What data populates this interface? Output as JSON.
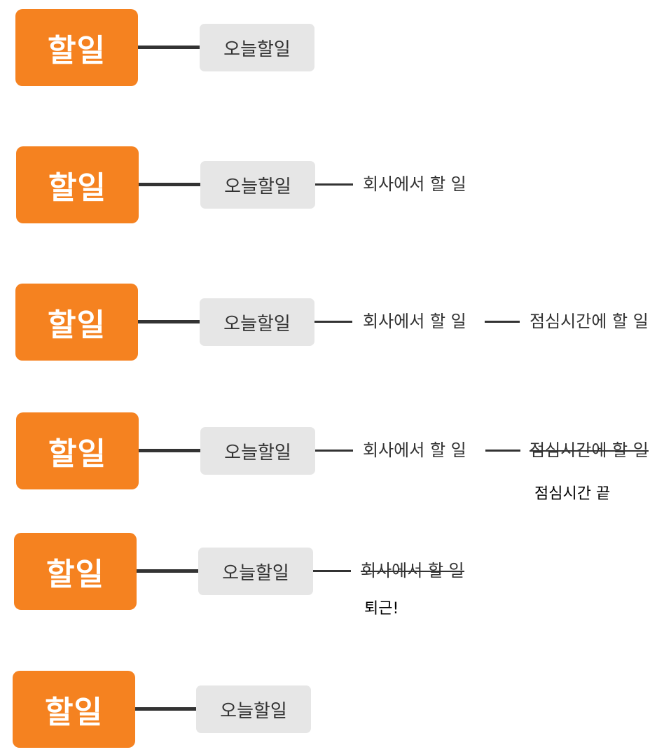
{
  "diagrams": [
    {
      "root": "할일",
      "child": "오늘할일"
    },
    {
      "root": "할일",
      "child": "오늘할일",
      "grandchild": "회사에서 할 일"
    },
    {
      "root": "할일",
      "child": "오늘할일",
      "grandchild": "회사에서 할 일",
      "great_grandchild": "점심시간에 할 일"
    },
    {
      "root": "할일",
      "child": "오늘할일",
      "grandchild": "회사에서 할 일",
      "great_grandchild": "점심시간에 할 일",
      "great_grandchild_done": true,
      "note": "점심시간 끝"
    },
    {
      "root": "할일",
      "child": "오늘할일",
      "grandchild": "회사에서 할 일",
      "grandchild_done": true,
      "note": "퇴근!"
    },
    {
      "root": "할일",
      "child": "오늘할일"
    }
  ],
  "colors": {
    "root_fill": "#f58220",
    "root_text": "#ffffff",
    "node_fill": "#e6e6e6",
    "node_text": "#333333",
    "connector": "#333333"
  }
}
